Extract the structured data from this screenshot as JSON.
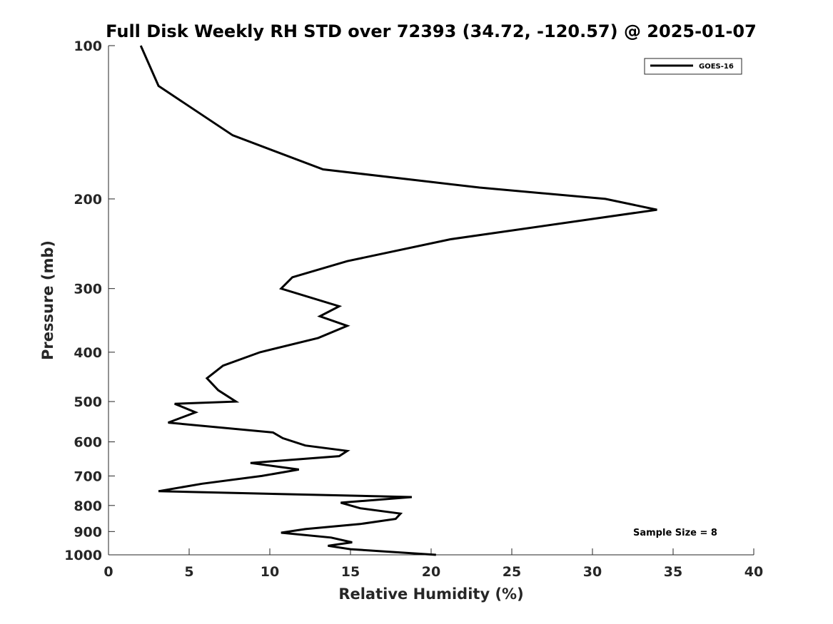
{
  "chart_data": {
    "type": "line",
    "title": "Full Disk Weekly RH STD over 72393 (34.72, -120.57) @ 2025-01-07",
    "xlabel": "Relative Humidity (%)",
    "ylabel": "Pressure (mb)",
    "xlim": [
      0,
      40
    ],
    "ylim": [
      100,
      1000
    ],
    "yscale": "log",
    "y_reversed": true,
    "grid": false,
    "x_ticks": [
      0,
      5,
      10,
      15,
      20,
      25,
      30,
      35,
      40
    ],
    "y_ticks": [
      100,
      200,
      300,
      400,
      500,
      600,
      700,
      800,
      900,
      1000
    ],
    "legend": {
      "placement": "top-right",
      "entries": [
        "GOES-16"
      ]
    },
    "annotation": "Sample Size = 8",
    "series": [
      {
        "name": "GOES-16",
        "color": "#000000",
        "x": [
          2.0,
          3.1,
          7.7,
          13.3,
          23.0,
          30.8,
          34.0,
          21.2,
          14.8,
          11.4,
          10.7,
          14.3,
          13.1,
          14.8,
          13.0,
          9.4,
          7.1,
          6.1,
          6.8,
          7.9,
          4.1,
          5.4,
          3.7,
          10.2,
          10.8,
          12.2,
          14.8,
          14.3,
          8.8,
          11.8,
          9.5,
          5.8,
          3.1,
          18.8,
          14.4,
          15.6,
          18.1,
          17.8,
          15.6,
          12.2,
          10.7,
          13.8,
          15.1,
          13.6,
          15.0,
          20.3
        ],
        "y": [
          100,
          120,
          150,
          175,
          190,
          200,
          210,
          240,
          265,
          285,
          300,
          325,
          340,
          355,
          375,
          400,
          425,
          450,
          475,
          500,
          505,
          525,
          550,
          575,
          590,
          610,
          625,
          640,
          660,
          680,
          700,
          725,
          750,
          770,
          790,
          810,
          830,
          850,
          870,
          890,
          905,
          925,
          945,
          960,
          975,
          1000
        ]
      }
    ]
  }
}
